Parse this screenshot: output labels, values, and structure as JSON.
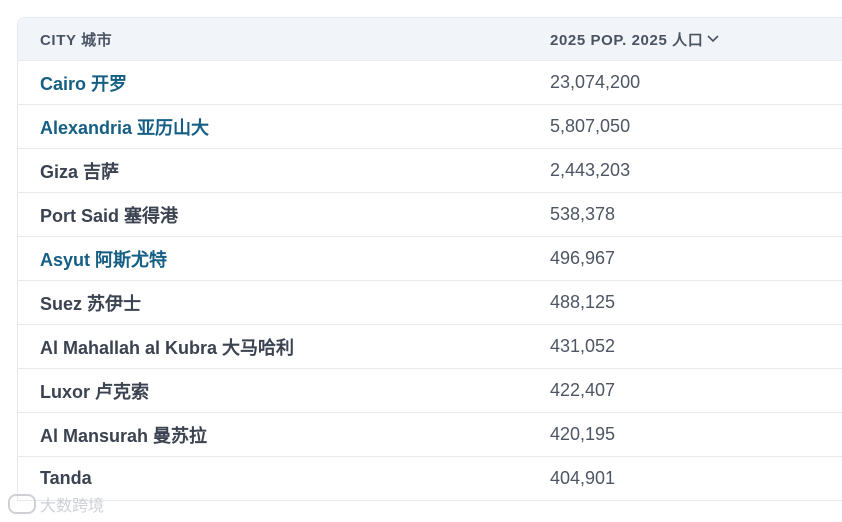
{
  "table": {
    "columns": {
      "city": "CITY 城市",
      "population": "2025 POP. 2025 人口"
    },
    "rows": [
      {
        "city": "Cairo 开罗",
        "population": "23,074,200",
        "link": true
      },
      {
        "city": "Alexandria 亚历山大",
        "population": "5,807,050",
        "link": true
      },
      {
        "city": "Giza 吉萨",
        "population": "2,443,203",
        "link": false
      },
      {
        "city": "Port Said 塞得港",
        "population": "538,378",
        "link": false
      },
      {
        "city": "Asyut 阿斯尤特",
        "population": "496,967",
        "link": true
      },
      {
        "city": "Suez 苏伊士",
        "population": "488,125",
        "link": false
      },
      {
        "city": "Al Mahallah al Kubra 大马哈利",
        "population": "431,052",
        "link": false
      },
      {
        "city": "Luxor 卢克索",
        "population": "422,407",
        "link": false
      },
      {
        "city": "Al Mansurah 曼苏拉",
        "population": "420,195",
        "link": false
      },
      {
        "city": "Tanda",
        "population": "404,901",
        "link": false
      }
    ]
  },
  "watermark": {
    "text": "大数跨境"
  },
  "icons": {
    "sort": "chevron-down-icon"
  },
  "colors": {
    "link": "#155e84",
    "text": "#3b4250",
    "header_bg": "#f1f5fa"
  }
}
